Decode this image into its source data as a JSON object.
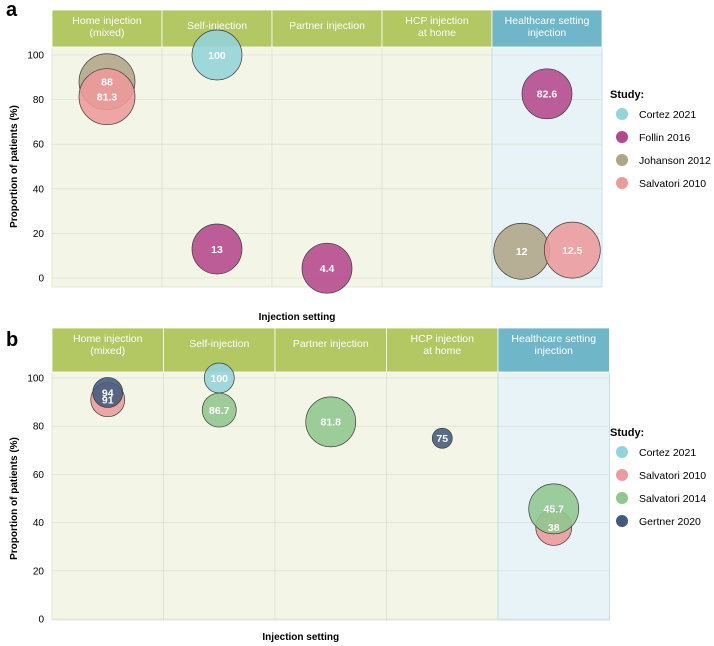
{
  "chart_data": [
    {
      "type": "scatter",
      "panel_label": "a",
      "categories": [
        "Home injection\n(mixed)",
        "Self-injection",
        "Partner injection",
        "HCP injection\nat home",
        "Healthcare setting\ninjection"
      ],
      "highlight_category": "Healthcare setting\ninjection",
      "xlabel": "Injection setting",
      "ylabel": "Proportion of patients (%)",
      "ylim": [
        0,
        100
      ],
      "yticks": [
        0,
        20,
        40,
        60,
        80,
        100
      ],
      "grid": true,
      "legend_title": "Study:",
      "legend_position": "right",
      "series": [
        {
          "name": "Cortez 2021",
          "color": "#92d4d9",
          "points": [
            {
              "category": 1,
              "offset": 0,
              "value": 100,
              "label": "100"
            }
          ]
        },
        {
          "name": "Follin 2016",
          "color": "#b5488c",
          "points": [
            {
              "category": 1,
              "offset": 0,
              "value": 13,
              "label": "13"
            },
            {
              "category": 2,
              "offset": 0,
              "value": 4.4,
              "label": "4.4"
            },
            {
              "category": 4,
              "offset": 0,
              "value": 82.6,
              "label": "82.6"
            }
          ]
        },
        {
          "name": "Johanson 2012",
          "color": "#b0a587",
          "points": [
            {
              "category": 0,
              "offset": 0,
              "value": 88,
              "label": "88"
            },
            {
              "category": 4,
              "offset": -0.23,
              "value": 12,
              "label": "12"
            }
          ]
        },
        {
          "name": "Salvatori 2010",
          "color": "#ed9a9b",
          "points": [
            {
              "category": 0,
              "offset": 0,
              "value": 81.3,
              "label": "81.3"
            },
            {
              "category": 4,
              "offset": 0.23,
              "value": 12.5,
              "label": "12.5"
            }
          ]
        }
      ]
    },
    {
      "type": "scatter",
      "panel_label": "b",
      "categories": [
        "Home injection\n(mixed)",
        "Self-injection",
        "Partner injection",
        "HCP injection\nat home",
        "Healthcare setting\ninjection"
      ],
      "highlight_category": "Healthcare setting\ninjection",
      "xlabel": "Injection setting",
      "ylabel": "Proportion of patients (%)",
      "ylim": [
        0,
        100
      ],
      "yticks": [
        0,
        20,
        40,
        60,
        80,
        100
      ],
      "grid": true,
      "legend_title": "Study:",
      "legend_position": "right",
      "series": [
        {
          "name": "Cortez 2021",
          "color": "#92d4d9",
          "points": [
            {
              "category": 1,
              "offset": 0,
              "value": 100,
              "label": "100"
            }
          ]
        },
        {
          "name": "Salvatori 2010",
          "color": "#ed9a9b",
          "points": [
            {
              "category": 0,
              "offset": 0,
              "value": 91,
              "label": "91"
            },
            {
              "category": 4,
              "offset": 0,
              "value": 38,
              "label": "38"
            }
          ]
        },
        {
          "name": "Salvatori 2014",
          "color": "#8fc78e",
          "points": [
            {
              "category": 1,
              "offset": 0,
              "value": 86.7,
              "label": "86.7"
            },
            {
              "category": 2,
              "offset": 0,
              "value": 81.8,
              "label": "81.8"
            },
            {
              "category": 4,
              "offset": 0,
              "value": 45.7,
              "label": "45.7"
            }
          ]
        },
        {
          "name": "Gertner 2020",
          "color": "#425a7d",
          "points": [
            {
              "category": 0,
              "offset": 0,
              "value": 94,
              "label": "94"
            },
            {
              "category": 3,
              "offset": 0,
              "value": 75,
              "label": "75"
            }
          ]
        }
      ]
    }
  ],
  "colors": {
    "header_green": "#b3c762",
    "header_blue": "#6fb6c9",
    "plot_green": "#f3f5e6",
    "plot_blue": "#e7f3f6",
    "grid": "#d8dccc"
  }
}
